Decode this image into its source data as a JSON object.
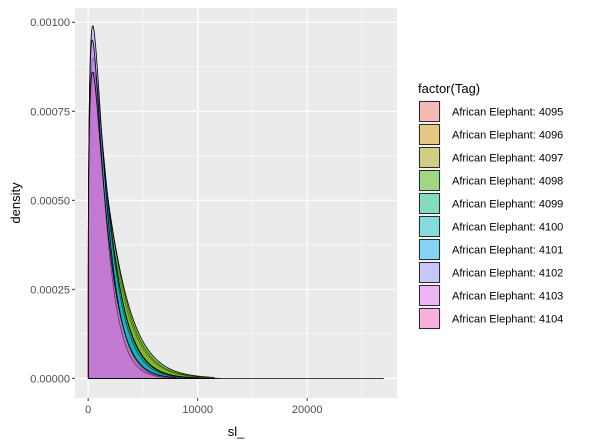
{
  "chart_data": {
    "type": "area",
    "xlabel": "sl_",
    "ylabel": "density",
    "xlim": [
      -1200,
      28200
    ],
    "ylim": [
      -5.5e-05,
      0.00104
    ],
    "x_ticks": [
      0,
      10000,
      20000
    ],
    "x_tick_labels": [
      "0",
      "10000",
      "20000"
    ],
    "y_ticks": [
      0,
      0.00025,
      0.0005,
      0.00075,
      0.001
    ],
    "y_tick_labels": [
      "0.00000",
      "0.00025",
      "0.00050",
      "0.00075",
      "0.00100"
    ],
    "grid": true,
    "legend_title": "factor(Tag)",
    "legend_position": "right",
    "series": [
      {
        "name": "African Elephant: 4095",
        "color": "#F8766D",
        "peak_x": 520,
        "peak_y": 0.00082,
        "scale": 1200,
        "max_x": 9500
      },
      {
        "name": "African Elephant: 4096",
        "color": "#D89000",
        "peak_x": 600,
        "peak_y": 0.00068,
        "scale": 1500,
        "max_x": 11000
      },
      {
        "name": "African Elephant: 4097",
        "color": "#A3A500",
        "peak_x": 560,
        "peak_y": 0.00074,
        "scale": 1550,
        "max_x": 10500
      },
      {
        "name": "African Elephant: 4098",
        "color": "#39B600",
        "peak_x": 580,
        "peak_y": 0.00071,
        "scale": 1650,
        "max_x": 11500
      },
      {
        "name": "African Elephant: 4099",
        "color": "#00BF7D",
        "peak_x": 480,
        "peak_y": 0.00084,
        "scale": 1300,
        "max_x": 10000
      },
      {
        "name": "African Elephant: 4100",
        "color": "#00BFC4",
        "peak_x": 450,
        "peak_y": 0.0009,
        "scale": 1200,
        "max_x": 12000
      },
      {
        "name": "African Elephant: 4101",
        "color": "#00B0F6",
        "peak_x": 500,
        "peak_y": 0.00086,
        "scale": 1250,
        "max_x": 9000
      },
      {
        "name": "African Elephant: 4102",
        "color": "#9590FF",
        "peak_x": 420,
        "peak_y": 0.00099,
        "scale": 1000,
        "max_x": 7000
      },
      {
        "name": "African Elephant: 4103",
        "color": "#E76BF3",
        "peak_x": 380,
        "peak_y": 0.00095,
        "scale": 950,
        "max_x": 27000
      },
      {
        "name": "African Elephant: 4104",
        "color": "#FF62BC",
        "peak_x": 400,
        "peak_y": 0.00086,
        "scale": 1100,
        "max_x": 8000
      }
    ]
  }
}
